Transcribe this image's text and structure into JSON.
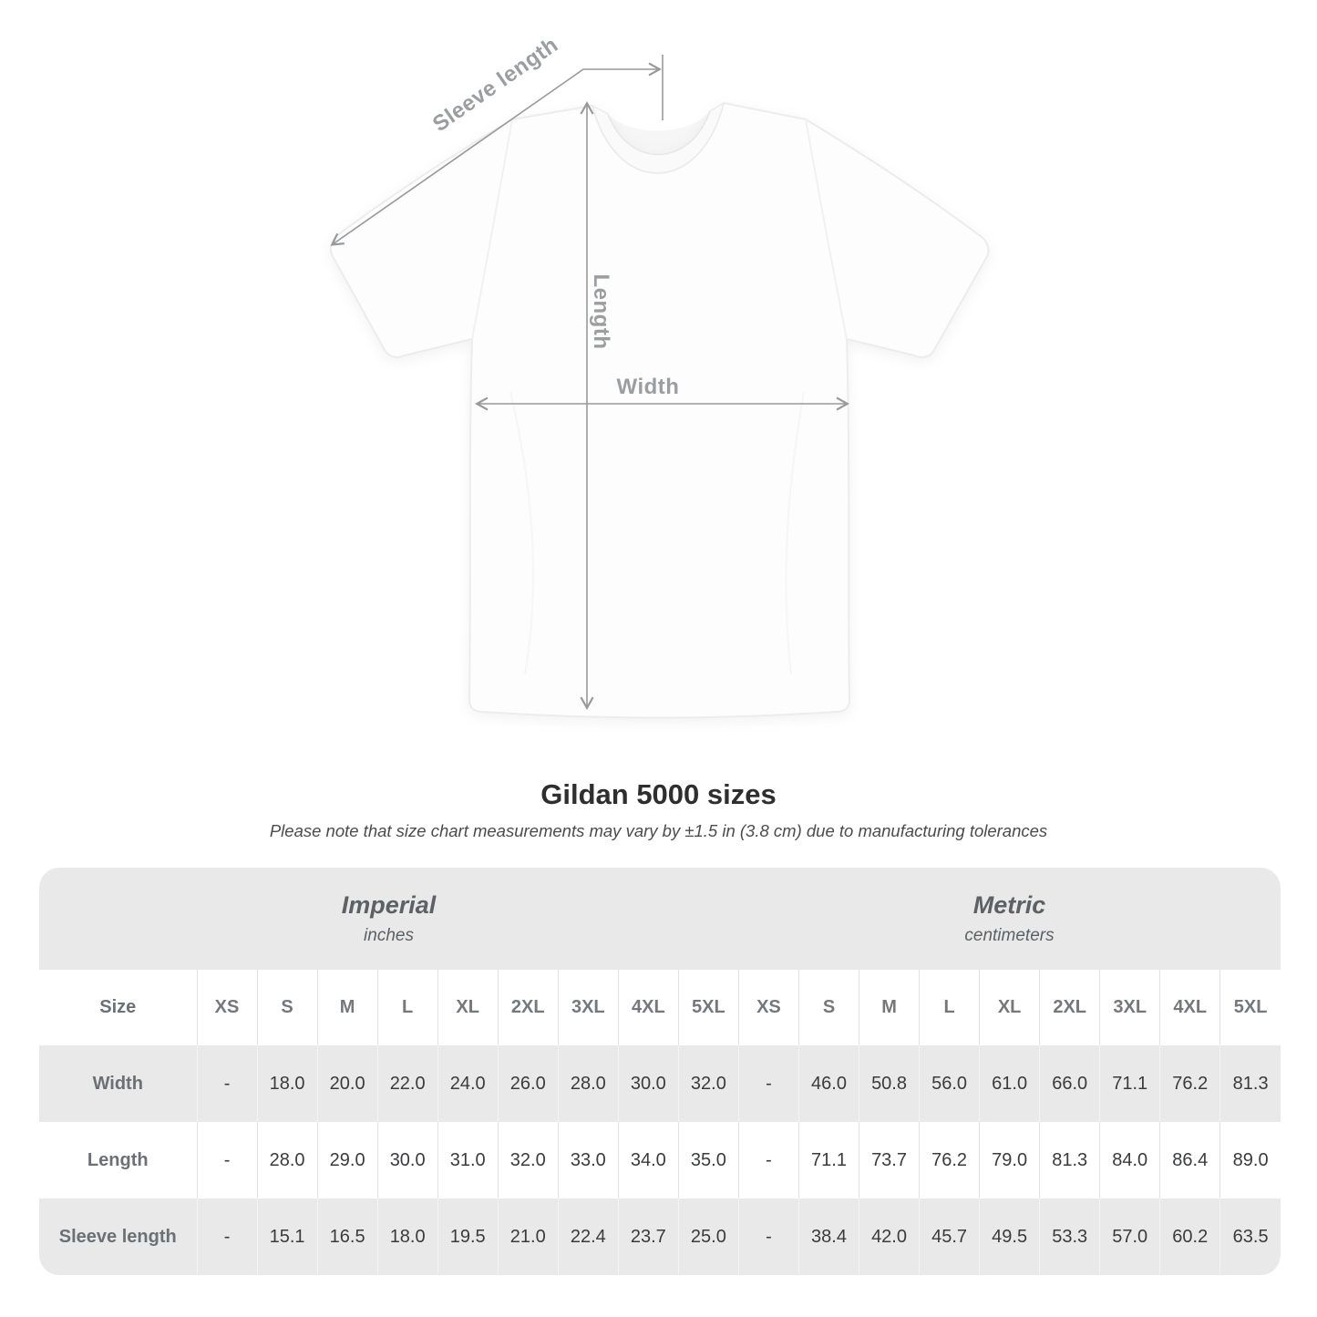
{
  "diagram": {
    "labels": {
      "sleeve_length": "Sleeve length",
      "length": "Length",
      "width": "Width"
    }
  },
  "title": "Gildan 5000 sizes",
  "subtitle": "Please note that size chart measurements may vary by ±1.5 in (3.8 cm) due to manufacturing tolerances",
  "table": {
    "unit_groups": [
      {
        "label": "Imperial",
        "sublabel": "inches"
      },
      {
        "label": "Metric",
        "sublabel": "centimeters"
      }
    ],
    "size_header": "Size",
    "sizes": [
      "XS",
      "S",
      "M",
      "L",
      "XL",
      "2XL",
      "3XL",
      "4XL",
      "5XL"
    ],
    "rows": [
      {
        "label": "Width",
        "imperial": [
          "-",
          "18.0",
          "20.0",
          "22.0",
          "24.0",
          "26.0",
          "28.0",
          "30.0",
          "32.0"
        ],
        "metric": [
          "-",
          "46.0",
          "50.8",
          "56.0",
          "61.0",
          "66.0",
          "71.1",
          "76.2",
          "81.3"
        ]
      },
      {
        "label": "Length",
        "imperial": [
          "-",
          "28.0",
          "29.0",
          "30.0",
          "31.0",
          "32.0",
          "33.0",
          "34.0",
          "35.0"
        ],
        "metric": [
          "-",
          "71.1",
          "73.7",
          "76.2",
          "79.0",
          "81.3",
          "84.0",
          "86.4",
          "89.0"
        ]
      },
      {
        "label": "Sleeve length",
        "imperial": [
          "-",
          "15.1",
          "16.5",
          "18.0",
          "19.5",
          "21.0",
          "22.4",
          "23.7",
          "25.0"
        ],
        "metric": [
          "-",
          "38.4",
          "42.0",
          "45.7",
          "49.5",
          "53.3",
          "57.0",
          "60.2",
          "63.5"
        ]
      }
    ]
  },
  "colors": {
    "shade": "#e9e9e9",
    "sep-dark": "#e2e2e2",
    "sep-light": "#f4f4f4",
    "label": "#6b7074",
    "size-head": "#74787d",
    "value": "#3a3b3d",
    "muted": "#9a9ea1",
    "line": "#97999b",
    "title": "#2e2e2e",
    "subtitle": "#4b4b4b",
    "unit-head": "#5d6165"
  }
}
